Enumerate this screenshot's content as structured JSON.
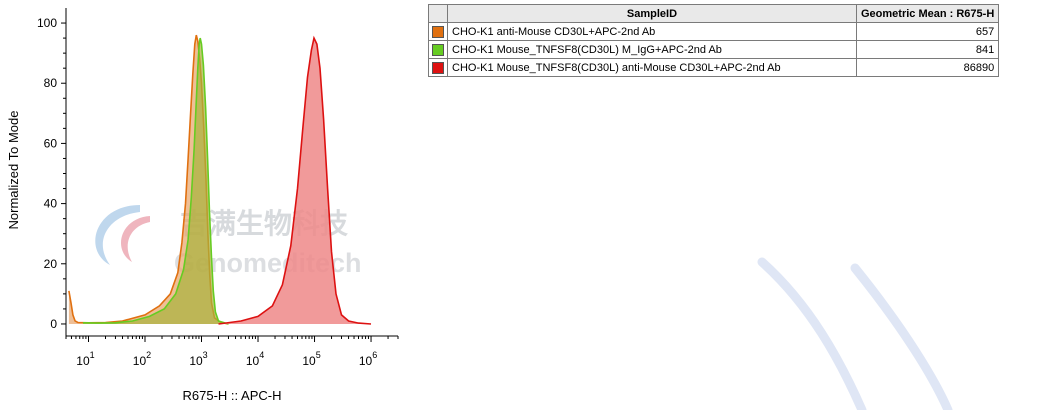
{
  "chart_data": {
    "type": "area",
    "xlabel": "R675-H :: APC-H",
    "ylabel": "Normalized To Mode",
    "x_scale": "log",
    "xlim": [
      4,
      3000000
    ],
    "ylim": [
      -4,
      105
    ],
    "x_ticks": [
      {
        "value": 10,
        "base": "10",
        "exp": "1"
      },
      {
        "value": 100,
        "base": "10",
        "exp": "2"
      },
      {
        "value": 1000,
        "base": "10",
        "exp": "3"
      },
      {
        "value": 10000,
        "base": "10",
        "exp": "4"
      },
      {
        "value": 100000,
        "base": "10",
        "exp": "5"
      },
      {
        "value": 1000000,
        "base": "10",
        "exp": "6"
      }
    ],
    "y_ticks": [
      {
        "value": 0,
        "label": "0"
      },
      {
        "value": 20,
        "label": "20"
      },
      {
        "value": 40,
        "label": "40"
      },
      {
        "value": 60,
        "label": "60"
      },
      {
        "value": 80,
        "label": "80"
      },
      {
        "value": 100,
        "label": "100"
      }
    ],
    "grid": false,
    "legend_position": "top-right",
    "series": [
      {
        "name": "CHO-K1 anti-Mouse CD30L+APC-2nd Ab",
        "color": "#e07010",
        "fill": "#e8a46a",
        "geometric_mean": "657",
        "points": [
          [
            4.5,
            11
          ],
          [
            4.9,
            7
          ],
          [
            5.3,
            3
          ],
          [
            5.8,
            1
          ],
          [
            6.5,
            0.5
          ],
          [
            10,
            0.4
          ],
          [
            20,
            0.5
          ],
          [
            40,
            1
          ],
          [
            100,
            3
          ],
          [
            180,
            6
          ],
          [
            280,
            10
          ],
          [
            380,
            17
          ],
          [
            450,
            27
          ],
          [
            520,
            40
          ],
          [
            580,
            55
          ],
          [
            640,
            70
          ],
          [
            700,
            83
          ],
          [
            760,
            93
          ],
          [
            810,
            96
          ],
          [
            860,
            94
          ],
          [
            930,
            88
          ],
          [
            1000,
            80
          ],
          [
            1100,
            65
          ],
          [
            1200,
            48
          ],
          [
            1300,
            30
          ],
          [
            1400,
            16
          ],
          [
            1500,
            7
          ],
          [
            1700,
            2
          ],
          [
            2200,
            0.5
          ],
          [
            3000,
            0
          ]
        ]
      },
      {
        "name": "CHO-K1 Mouse_TNFSF8(CD30L) M_IgG+APC-2nd Ab",
        "color": "#66cc22",
        "fill": "#a8b23a",
        "geometric_mean": "841",
        "points": [
          [
            8,
            0.4
          ],
          [
            15,
            0.3
          ],
          [
            30,
            0.4
          ],
          [
            60,
            1
          ],
          [
            120,
            2.5
          ],
          [
            220,
            5
          ],
          [
            350,
            10
          ],
          [
            480,
            18
          ],
          [
            580,
            28
          ],
          [
            660,
            42
          ],
          [
            740,
            58
          ],
          [
            800,
            72
          ],
          [
            860,
            85
          ],
          [
            910,
            93
          ],
          [
            950,
            95
          ],
          [
            1000,
            93
          ],
          [
            1080,
            86
          ],
          [
            1180,
            72
          ],
          [
            1280,
            55
          ],
          [
            1380,
            38
          ],
          [
            1500,
            22
          ],
          [
            1620,
            11
          ],
          [
            1760,
            4
          ],
          [
            2000,
            1
          ],
          [
            3000,
            0
          ]
        ]
      },
      {
        "name": "CHO-K1 Mouse_TNFSF8(CD30L) anti-Mouse CD30L+APC-2nd Ab",
        "color": "#dd1111",
        "fill": "#ef8888",
        "geometric_mean": "86890",
        "points": [
          [
            2000,
            0
          ],
          [
            5000,
            1
          ],
          [
            10000,
            2.5
          ],
          [
            18000,
            6
          ],
          [
            27000,
            13
          ],
          [
            38000,
            26
          ],
          [
            50000,
            45
          ],
          [
            62000,
            65
          ],
          [
            75000,
            82
          ],
          [
            88000,
            91
          ],
          [
            98000,
            95
          ],
          [
            110000,
            93
          ],
          [
            125000,
            85
          ],
          [
            145000,
            68
          ],
          [
            170000,
            45
          ],
          [
            200000,
            24
          ],
          [
            240000,
            10
          ],
          [
            300000,
            3
          ],
          [
            400000,
            1
          ],
          [
            600000,
            0.3
          ],
          [
            1000000,
            0
          ]
        ]
      }
    ]
  },
  "table": {
    "headers": {
      "swatch": "",
      "sample": "SampleID",
      "value": "Geometric Mean : R675-H"
    }
  },
  "watermark": {
    "cn_text": "吉满生物科技",
    "en_text": "Genomeditech"
  }
}
